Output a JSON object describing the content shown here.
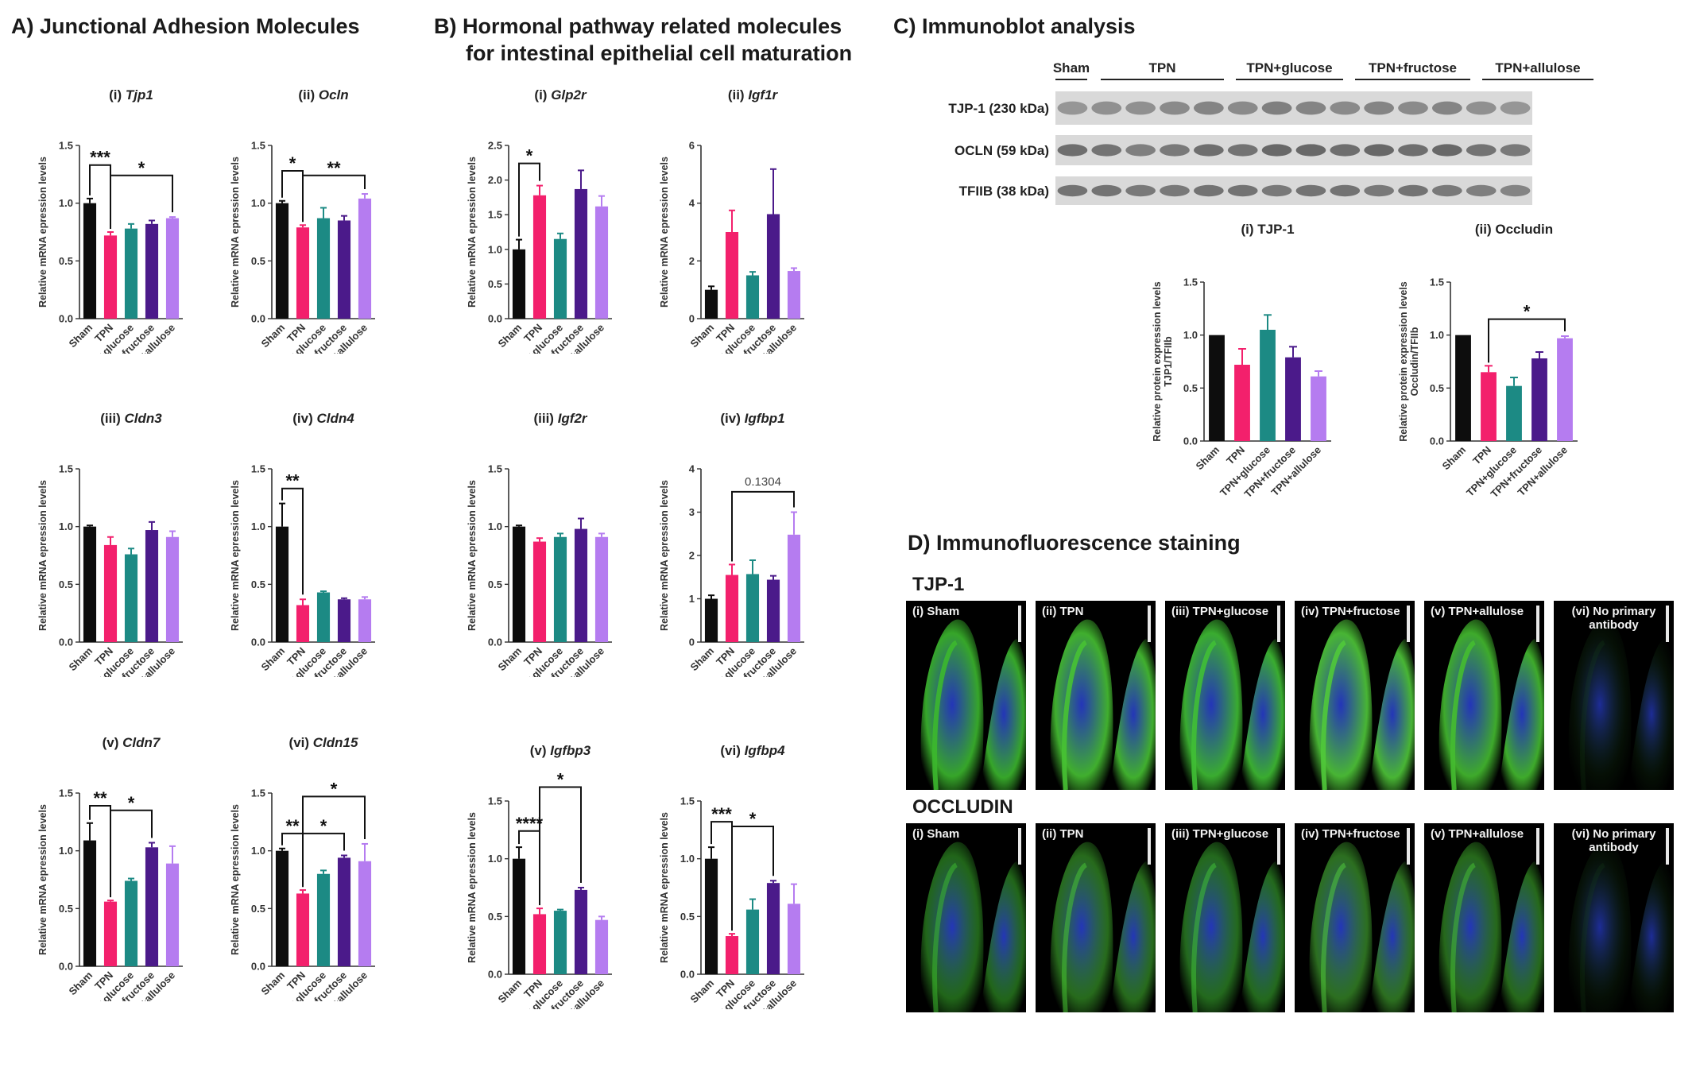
{
  "sections": {
    "a": "A) Junctional Adhesion Molecules",
    "b_line1": "B) Hormonal pathway related molecules",
    "b_line2": "for intestinal epithelial cell maturation",
    "c": "C) Immunoblot analysis",
    "d": "D) Immunofluorescence staining"
  },
  "colors": {
    "Sham": "#0d0d0d",
    "TPN": "#f3206c",
    "TPN+glucose": "#1c8a84",
    "TPN+fructose": "#4b1a8a",
    "TPN+allulose": "#b57cf0"
  },
  "chart_data": [
    {
      "id": "a1",
      "type": "bar",
      "prefix": "(i) ",
      "gene": "Tjp1",
      "ylabel": "Relative mRNA epression levels",
      "ylim": [
        0,
        1.5
      ],
      "ticks": [
        "0.0",
        "0.5",
        "1.0",
        "1.5"
      ],
      "categories": [
        "Sham",
        "TPN",
        "TPN+glucose",
        "TPN+fructose",
        "TPN+allulose"
      ],
      "values": [
        1.0,
        0.72,
        0.78,
        0.82,
        0.87
      ],
      "errors": [
        0.04,
        0.03,
        0.04,
        0.03,
        0.01
      ],
      "annotations": [
        {
          "from": 0,
          "to": 1,
          "label": "***",
          "level": 1.33
        },
        {
          "from": 1,
          "to": 4,
          "label": "*",
          "level": 1.24
        }
      ]
    },
    {
      "id": "a2",
      "type": "bar",
      "prefix": "(ii) ",
      "gene": "Ocln",
      "ylabel": "Relative mRNA epression levels",
      "ylim": [
        0,
        1.5
      ],
      "ticks": [
        "0.0",
        "0.5",
        "1.0",
        "1.5"
      ],
      "categories": [
        "Sham",
        "TPN",
        "TPN+glucose",
        "TPN+fructose",
        "TPN+allulose"
      ],
      "values": [
        1.0,
        0.79,
        0.87,
        0.85,
        1.04
      ],
      "errors": [
        0.02,
        0.02,
        0.09,
        0.04,
        0.04
      ],
      "annotations": [
        {
          "from": 0,
          "to": 1,
          "label": "*",
          "level": 1.28
        },
        {
          "from": 1,
          "to": 4,
          "label": "**",
          "level": 1.24
        }
      ]
    },
    {
      "id": "a3",
      "type": "bar",
      "prefix": "(iii) ",
      "gene": "Cldn3",
      "ylabel": "Relative mRNA epression levels",
      "ylim": [
        0,
        1.5
      ],
      "ticks": [
        "0.0",
        "0.5",
        "1.0",
        "1.5"
      ],
      "categories": [
        "Sham",
        "TPN",
        "TPN+glucose",
        "TPN+fructose",
        "TPN+allulose"
      ],
      "values": [
        1.0,
        0.84,
        0.76,
        0.97,
        0.91
      ],
      "errors": [
        0.01,
        0.07,
        0.05,
        0.07,
        0.05
      ],
      "annotations": []
    },
    {
      "id": "a4",
      "type": "bar",
      "prefix": "(iv) ",
      "gene": "Cldn4",
      "ylabel": "Relative mRNA epression levels",
      "ylim": [
        0,
        1.5
      ],
      "ticks": [
        "0.0",
        "0.5",
        "1.0",
        "1.5"
      ],
      "categories": [
        "Sham",
        "TPN",
        "TPN+glucose",
        "TPN+fructose",
        "TPN+allulose"
      ],
      "values": [
        1.0,
        0.32,
        0.43,
        0.37,
        0.37
      ],
      "errors": [
        0.2,
        0.05,
        0.01,
        0.01,
        0.02
      ],
      "annotations": [
        {
          "from": 0,
          "to": 1,
          "label": "**",
          "level": 1.33
        }
      ]
    },
    {
      "id": "a5",
      "type": "bar",
      "prefix": "(v) ",
      "gene": "Cldn7",
      "ylabel": "Relative mRNA epression levels",
      "ylim": [
        0,
        1.5
      ],
      "ticks": [
        "0.0",
        "0.5",
        "1.0",
        "1.5"
      ],
      "categories": [
        "Sham",
        "TPN",
        "TPN+glucose",
        "TPN+fructose",
        "TPN+allulose"
      ],
      "values": [
        1.09,
        0.56,
        0.74,
        1.03,
        0.89
      ],
      "errors": [
        0.15,
        0.01,
        0.02,
        0.04,
        0.15
      ],
      "annotations": [
        {
          "from": 0,
          "to": 1,
          "label": "**",
          "level": 1.39
        },
        {
          "from": 1,
          "to": 3,
          "label": "*",
          "level": 1.35
        }
      ]
    },
    {
      "id": "a6",
      "type": "bar",
      "prefix": "(vi) ",
      "gene": "Cldn15",
      "ylabel": "Relative mRNA epression levels",
      "ylim": [
        0,
        1.5
      ],
      "ticks": [
        "0.0",
        "0.5",
        "1.0",
        "1.5"
      ],
      "categories": [
        "Sham",
        "TPN",
        "TPN+glucose",
        "TPN+fructose",
        "TPN+allulose"
      ],
      "values": [
        1.0,
        0.63,
        0.8,
        0.94,
        0.91
      ],
      "errors": [
        0.02,
        0.03,
        0.03,
        0.02,
        0.15
      ],
      "annotations": [
        {
          "from": 0,
          "to": 1,
          "label": "**",
          "level": 1.15
        },
        {
          "from": 1,
          "to": 3,
          "label": "*",
          "level": 1.15
        },
        {
          "from": 1,
          "to": 4,
          "label": "*",
          "level": 1.47
        }
      ]
    },
    {
      "id": "b1",
      "type": "bar",
      "prefix": "(i) ",
      "gene": "Glp2r",
      "ylabel": "Relative mRNA epression levels",
      "ylim": [
        0,
        2.5
      ],
      "ticks": [
        "0.0",
        "0.5",
        "1.0",
        "1.5",
        "2.0",
        "2.5"
      ],
      "categories": [
        "Sham",
        "TPN",
        "TPN+glucose",
        "TPN+fructose",
        "TPN+allulose"
      ],
      "values": [
        1.0,
        1.78,
        1.15,
        1.87,
        1.62
      ],
      "errors": [
        0.14,
        0.14,
        0.08,
        0.27,
        0.15
      ],
      "annotations": [
        {
          "from": 0,
          "to": 1,
          "label": "*",
          "level": 2.24
        }
      ]
    },
    {
      "id": "b2",
      "type": "bar",
      "prefix": "(ii) ",
      "gene": "Igf1r",
      "ylabel": "Relative mRNA epression levels",
      "ylim": [
        0,
        6
      ],
      "ticks": [
        "0",
        "2",
        "4",
        "6"
      ],
      "categories": [
        "Sham",
        "TPN",
        "TPN+glucose",
        "TPN+fructose",
        "TPN+allulose"
      ],
      "values": [
        1.0,
        3.0,
        1.5,
        3.62,
        1.65
      ],
      "errors": [
        0.12,
        0.75,
        0.12,
        1.56,
        0.1
      ],
      "annotations": []
    },
    {
      "id": "b3",
      "type": "bar",
      "prefix": "(iii) ",
      "gene": "Igf2r",
      "ylabel": "Relative mRNA epression levels",
      "ylim": [
        0,
        1.5
      ],
      "ticks": [
        "0.0",
        "0.5",
        "1.0",
        "1.5"
      ],
      "categories": [
        "Sham",
        "TPN",
        "TPN+glucose",
        "TPN+fructose",
        "TPN+allulose"
      ],
      "values": [
        1.0,
        0.87,
        0.91,
        0.98,
        0.91
      ],
      "errors": [
        0.01,
        0.03,
        0.03,
        0.09,
        0.03
      ],
      "annotations": []
    },
    {
      "id": "b4",
      "type": "bar",
      "prefix": "(iv) ",
      "gene": "Igfbp1",
      "ylabel": "Relative mRNA epression levels",
      "ylim": [
        0,
        4
      ],
      "ticks": [
        "0",
        "1",
        "2",
        "3",
        "4"
      ],
      "categories": [
        "Sham",
        "TPN",
        "TPN+glucose",
        "TPN+fructose",
        "TPN+allulose"
      ],
      "values": [
        1.0,
        1.55,
        1.57,
        1.44,
        2.48
      ],
      "errors": [
        0.08,
        0.24,
        0.32,
        0.09,
        0.52
      ],
      "annotations": [
        {
          "from": 1,
          "to": 4,
          "label": "0.1304",
          "level": 3.47,
          "plain": true
        }
      ]
    },
    {
      "id": "b5",
      "type": "bar",
      "prefix": "(v) ",
      "gene": "Igfbp3",
      "ylabel": "Relative mRNA epression levels",
      "ylim": [
        0,
        1.5
      ],
      "ticks": [
        "0.0",
        "0.5",
        "1.0",
        "1.5"
      ],
      "categories": [
        "Sham",
        "TPN",
        "TPN+glucose",
        "TPN+fructose",
        "TPN+allulose"
      ],
      "values": [
        1.0,
        0.52,
        0.55,
        0.73,
        0.47
      ],
      "errors": [
        0.1,
        0.05,
        0.01,
        0.02,
        0.03
      ],
      "annotations": [
        {
          "from": 0,
          "to": 1,
          "label": "****",
          "level": 1.24
        },
        {
          "from": 1,
          "to": 3,
          "label": "*",
          "level": 1.62
        }
      ]
    },
    {
      "id": "b6",
      "type": "bar",
      "prefix": "(vi) ",
      "gene": "Igfbp4",
      "ylabel": "Relative mRNA epression levels",
      "ylim": [
        0,
        1.5
      ],
      "ticks": [
        "0.0",
        "0.5",
        "1.0",
        "1.5"
      ],
      "categories": [
        "Sham",
        "TPN",
        "TPN+glucose",
        "TPN+fructose",
        "TPN+allulose"
      ],
      "values": [
        1.0,
        0.33,
        0.56,
        0.79,
        0.61
      ],
      "errors": [
        0.1,
        0.02,
        0.09,
        0.02,
        0.17
      ],
      "annotations": [
        {
          "from": 0,
          "to": 1,
          "label": "***",
          "level": 1.32
        },
        {
          "from": 1,
          "to": 3,
          "label": "*",
          "level": 1.28
        }
      ]
    },
    {
      "id": "c1",
      "type": "bar",
      "prefix": "(i) ",
      "gene": "TJP-1",
      "ylabel": "Relative protein expression levels",
      "ylabel2": "TJP1/TFIIb",
      "ylim": [
        0,
        1.5
      ],
      "ticks": [
        "0.0",
        "0.5",
        "1.0",
        "1.5"
      ],
      "categories": [
        "Sham",
        "TPN",
        "TPN+glucose",
        "TPN+fructose",
        "TPN+allulose"
      ],
      "values": [
        1.0,
        0.72,
        1.05,
        0.79,
        0.61
      ],
      "errors": [
        0,
        0.15,
        0.14,
        0.1,
        0.05
      ],
      "annotations": []
    },
    {
      "id": "c2",
      "type": "bar",
      "prefix": "(ii) ",
      "gene": "Occludin",
      "ylabel": "Relative protein expression levels",
      "ylabel2": "Occludin/TFIIb",
      "ylim": [
        0,
        1.5
      ],
      "ticks": [
        "0.0",
        "0.5",
        "1.0",
        "1.5"
      ],
      "categories": [
        "Sham",
        "TPN",
        "TPN+glucose",
        "TPN+fructose",
        "TPN+allulose"
      ],
      "values": [
        1.0,
        0.65,
        0.52,
        0.78,
        0.97
      ],
      "errors": [
        0,
        0.06,
        0.08,
        0.06,
        0.02
      ],
      "annotations": [
        {
          "from": 1,
          "to": 4,
          "label": "*",
          "level": 1.15
        }
      ]
    }
  ],
  "blot": {
    "groups": [
      "Sham",
      "TPN",
      "TPN+glucose",
      "TPN+fructose",
      "TPN+allulose"
    ],
    "rows": [
      {
        "label": "TJP-1 (230 kDa)",
        "intensity": [
          0.45,
          0.5,
          0.5,
          0.55,
          0.6,
          0.55,
          0.65,
          0.6,
          0.55,
          0.6,
          0.55,
          0.6,
          0.5,
          0.45
        ]
      },
      {
        "label": "OCLN (59 kDa)",
        "intensity": [
          0.8,
          0.75,
          0.65,
          0.7,
          0.8,
          0.75,
          0.85,
          0.85,
          0.8,
          0.85,
          0.8,
          0.85,
          0.75,
          0.7
        ]
      },
      {
        "label": "TFIIB (38 kDa)",
        "intensity": [
          0.75,
          0.75,
          0.7,
          0.7,
          0.75,
          0.75,
          0.7,
          0.75,
          0.75,
          0.7,
          0.75,
          0.7,
          0.65,
          0.6
        ]
      }
    ]
  },
  "if": {
    "rows": [
      {
        "title": "TJP-1",
        "panels": [
          "(i) Sham",
          "(ii) TPN",
          "(iii) TPN+glucose",
          "(iv) TPN+fructose",
          "(v) TPN+allulose"
        ],
        "last1": "(vi) No primary",
        "last2": "antibody"
      },
      {
        "title": "OCCLUDIN",
        "panels": [
          "(i) Sham",
          "(ii) TPN",
          "(iii) TPN+glucose",
          "(iv) TPN+fructose",
          "(v) TPN+allulose"
        ],
        "last1": "(vi) No primary",
        "last2": "antibody"
      }
    ]
  }
}
